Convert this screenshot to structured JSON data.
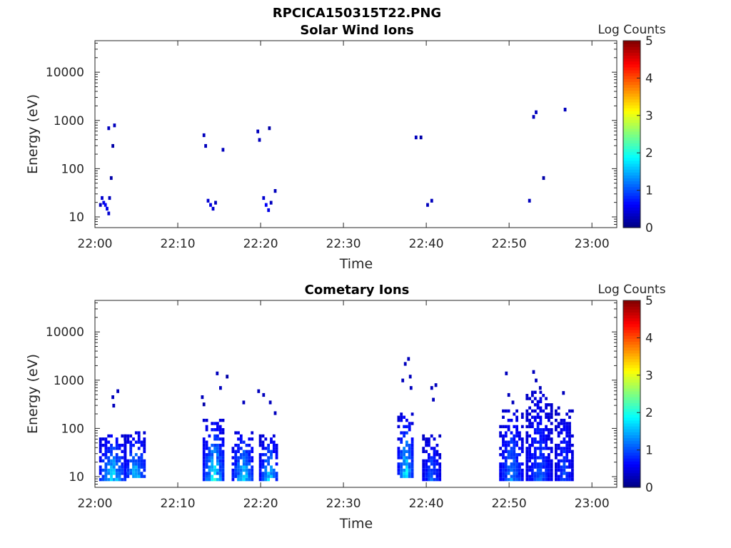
{
  "figure_title": "RPCICA150315T22.PNG",
  "colorbar": {
    "label": "Log Counts",
    "ticks": [
      "0",
      "1",
      "2",
      "3",
      "4",
      "5"
    ],
    "range": [
      0,
      5
    ],
    "colormap": [
      "#00008f",
      "#0000ff",
      "#0080ff",
      "#00ffff",
      "#80ff80",
      "#ffff00",
      "#ff8000",
      "#ff0000",
      "#800000"
    ]
  },
  "chart_data": [
    {
      "type": "heatmap",
      "title": "Solar Wind Ions",
      "xlabel": "Time",
      "ylabel": "Energy (eV)",
      "x_ticks": [
        "22:00",
        "22:10",
        "22:20",
        "22:30",
        "22:40",
        "22:50",
        "23:00"
      ],
      "y_ticks": [
        "10",
        "100",
        "1000",
        "10000"
      ],
      "x_range_min": [
        0,
        63
      ],
      "y_scale": "log",
      "y_range_eV": [
        6,
        45000
      ],
      "cells": [
        [
          0.5,
          18,
          0.3
        ],
        [
          0.7,
          25,
          0.4
        ],
        [
          0.9,
          20,
          0.5
        ],
        [
          1.1,
          18,
          0.6
        ],
        [
          1.3,
          15,
          0.5
        ],
        [
          1.5,
          12,
          0.4
        ],
        [
          1.6,
          25,
          0.3
        ],
        [
          1.5,
          700,
          0.3
        ],
        [
          1.8,
          65,
          0.2
        ],
        [
          2.0,
          300,
          0.2
        ],
        [
          2.2,
          800,
          0.3
        ],
        [
          13.0,
          500,
          0.3
        ],
        [
          13.2,
          300,
          0.3
        ],
        [
          13.5,
          22,
          0.4
        ],
        [
          13.8,
          18,
          0.5
        ],
        [
          14.1,
          15,
          0.4
        ],
        [
          14.4,
          20,
          0.3
        ],
        [
          15.3,
          250,
          0.3
        ],
        [
          19.5,
          600,
          0.3
        ],
        [
          19.7,
          400,
          0.3
        ],
        [
          20.2,
          25,
          0.4
        ],
        [
          20.5,
          18,
          0.6
        ],
        [
          20.8,
          14,
          0.5
        ],
        [
          21.1,
          20,
          0.3
        ],
        [
          20.9,
          700,
          0.2
        ],
        [
          21.6,
          35,
          0.3
        ],
        [
          38.6,
          450,
          0.3
        ],
        [
          39.2,
          450,
          0.2
        ],
        [
          40.0,
          18,
          0.3
        ],
        [
          40.5,
          22,
          0.3
        ],
        [
          52.3,
          22,
          0.3
        ],
        [
          52.8,
          1200,
          0.3
        ],
        [
          53.1,
          1500,
          0.3
        ],
        [
          54.0,
          65,
          0.2
        ],
        [
          56.6,
          1700,
          0.3
        ]
      ]
    },
    {
      "type": "heatmap",
      "title": "Cometary Ions",
      "xlabel": "Time",
      "ylabel": "Energy (eV)",
      "x_ticks": [
        "22:00",
        "22:10",
        "22:20",
        "22:30",
        "22:40",
        "22:50",
        "23:00"
      ],
      "y_ticks": [
        "10",
        "100",
        "1000",
        "10000"
      ],
      "x_range_min": [
        0,
        63
      ],
      "y_scale": "log",
      "y_range_eV": [
        6,
        45000
      ],
      "clusters": [
        {
          "t_min": 0.5,
          "t_max": 3.5,
          "e_min": 8,
          "e_max": 80,
          "peak": 2.2
        },
        {
          "t_min": 3.5,
          "t_max": 6.0,
          "e_min": 9,
          "e_max": 90,
          "peak": 2.0
        },
        {
          "t_min": 13.0,
          "t_max": 15.5,
          "e_min": 8,
          "e_max": 150,
          "peak": 2.3
        },
        {
          "t_min": 16.5,
          "t_max": 19.0,
          "e_min": 8,
          "e_max": 90,
          "peak": 2.2
        },
        {
          "t_min": 19.8,
          "t_max": 22.0,
          "e_min": 8,
          "e_max": 80,
          "peak": 2.0
        },
        {
          "t_min": 36.5,
          "t_max": 38.3,
          "e_min": 9,
          "e_max": 200,
          "peak": 2.3
        },
        {
          "t_min": 39.5,
          "t_max": 41.5,
          "e_min": 8,
          "e_max": 80,
          "peak": 1.4
        },
        {
          "t_min": 48.8,
          "t_max": 51.5,
          "e_min": 8,
          "e_max": 250,
          "peak": 1.6
        },
        {
          "t_min": 52.0,
          "t_max": 55.0,
          "e_min": 8,
          "e_max": 600,
          "peak": 1.3
        },
        {
          "t_min": 55.5,
          "t_max": 57.5,
          "e_min": 8,
          "e_max": 300,
          "peak": 1.2
        }
      ],
      "cells": [
        [
          2.0,
          450,
          0.3
        ],
        [
          2.1,
          300,
          0.3
        ],
        [
          2.6,
          600,
          0.3
        ],
        [
          12.8,
          450,
          0.3
        ],
        [
          13.0,
          320,
          0.2
        ],
        [
          14.6,
          1400,
          0.3
        ],
        [
          15.0,
          700,
          0.3
        ],
        [
          15.8,
          1200,
          0.2
        ],
        [
          17.8,
          350,
          0.3
        ],
        [
          19.6,
          600,
          0.3
        ],
        [
          20.2,
          500,
          0.3
        ],
        [
          21.0,
          350,
          0.3
        ],
        [
          21.6,
          210,
          0.3
        ],
        [
          37.0,
          1000,
          0.3
        ],
        [
          37.3,
          2200,
          0.3
        ],
        [
          37.7,
          2800,
          0.3
        ],
        [
          37.9,
          1200,
          0.3
        ],
        [
          38.0,
          700,
          0.3
        ],
        [
          40.5,
          700,
          0.3
        ],
        [
          41.0,
          800,
          0.3
        ],
        [
          40.7,
          400,
          0.3
        ],
        [
          49.5,
          1400,
          0.3
        ],
        [
          49.8,
          500,
          0.3
        ],
        [
          50.3,
          350,
          0.3
        ],
        [
          52.8,
          1500,
          0.3
        ],
        [
          53.1,
          1000,
          0.3
        ],
        [
          53.6,
          700,
          0.3
        ],
        [
          56.4,
          550,
          0.3
        ]
      ]
    }
  ]
}
